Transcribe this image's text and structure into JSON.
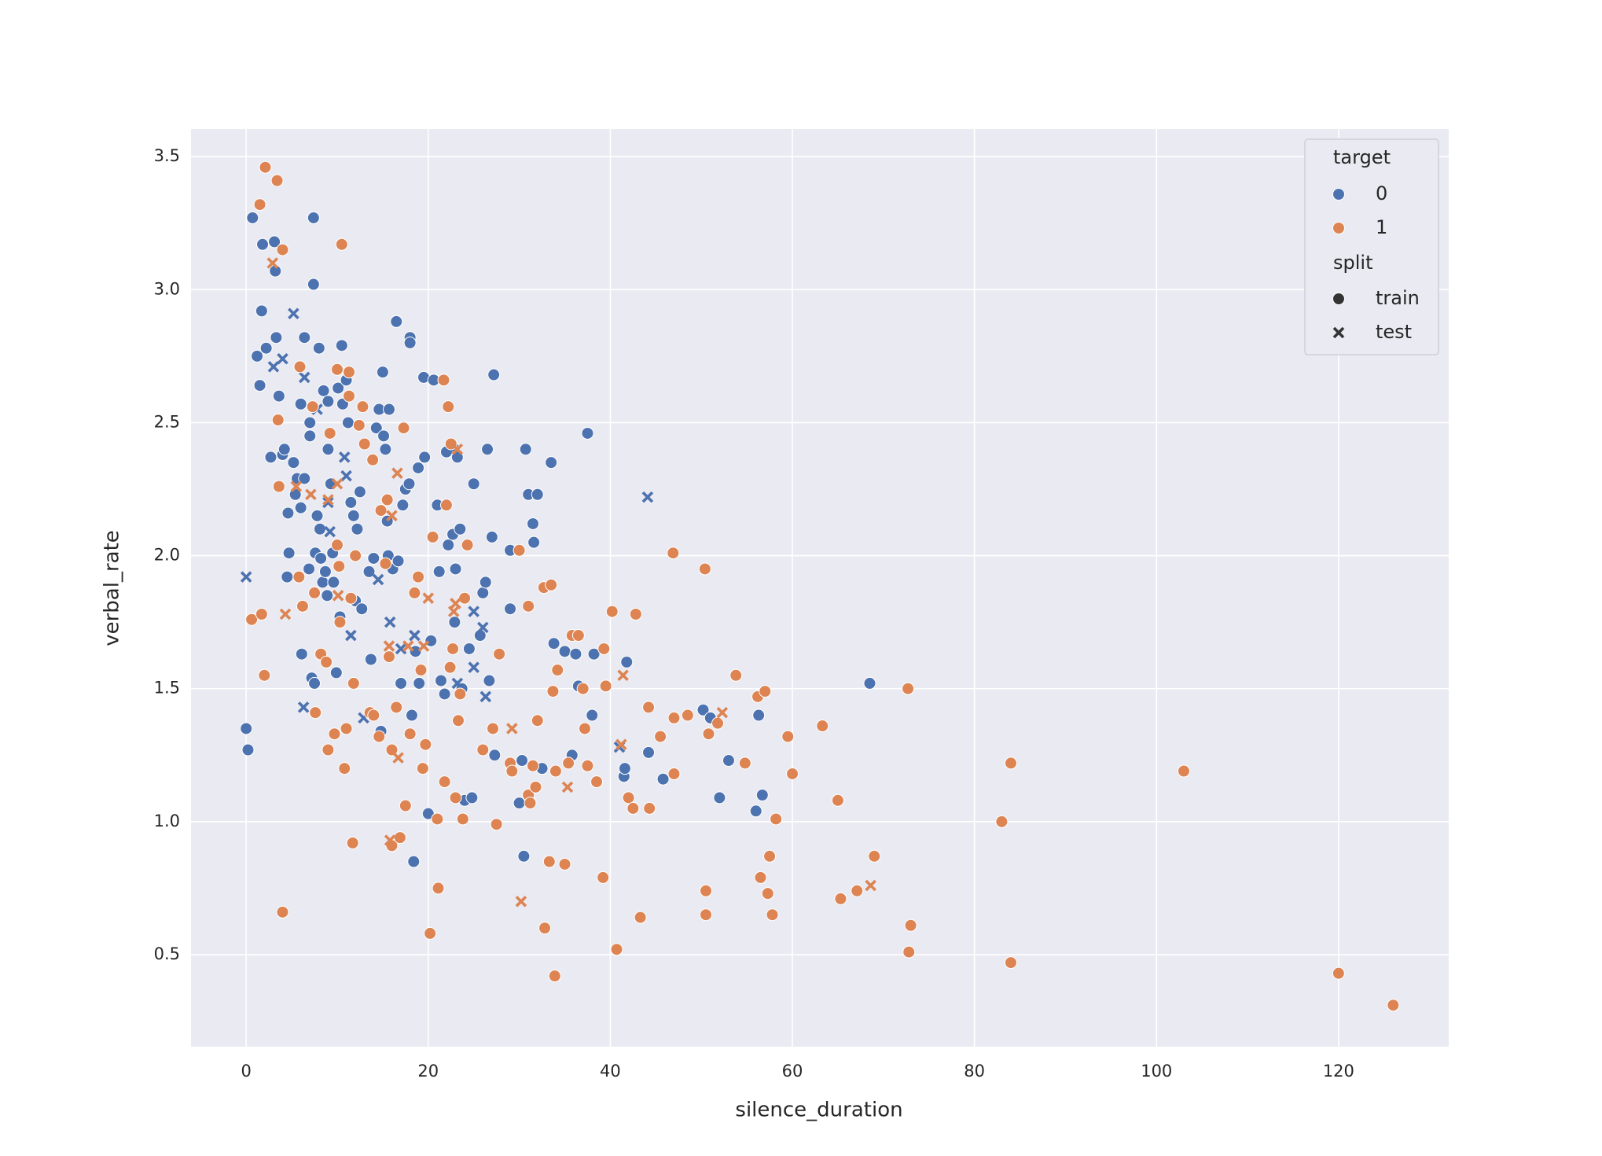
{
  "chart_data": {
    "type": "scatter",
    "x_label": "silence_duration",
    "y_label": "verbal_rate",
    "xlim": [
      -6.06,
      132.1
    ],
    "ylim": [
      0.154,
      3.604
    ],
    "xticks": [
      0,
      20,
      40,
      60,
      80,
      100,
      120
    ],
    "yticks": [
      {
        "value": 0.5,
        "label": "0.5"
      },
      {
        "value": 1,
        "label": "1.0"
      },
      {
        "value": 1.5,
        "label": "1.5"
      },
      {
        "value": 2,
        "label": "2.0"
      },
      {
        "value": 2.5,
        "label": "2.5"
      },
      {
        "value": 3,
        "label": "3.0"
      },
      {
        "value": 3.5,
        "label": "3.5"
      }
    ],
    "grid": true,
    "legend": {
      "loc": "upper right",
      "hue_title": "target",
      "hue_levels": [
        "0",
        "1"
      ],
      "style_title": "split",
      "style_levels": [
        "train",
        "test"
      ]
    },
    "palette": [
      "#4c72b0",
      "#dd8452"
    ],
    "markers": [
      "circle",
      "x"
    ],
    "series": [
      {
        "hue": 0,
        "style": 0,
        "x": [
          0,
          0.2,
          0.7,
          1.2,
          1.5,
          1.7,
          1.8,
          2.2,
          2.7,
          3.1,
          3.2,
          3.3,
          3.6,
          4,
          4.2,
          4.6,
          4.7,
          4.5,
          5.2,
          5.4,
          5.6,
          6,
          6.1,
          6,
          6.4,
          6.4,
          6.9,
          7,
          7,
          7.2,
          7.5,
          7.4,
          7.4,
          7.6,
          7.8,
          8,
          8.1,
          8.2,
          8.4,
          8.5,
          8.7,
          8.9,
          9,
          9,
          9.3,
          9.5,
          9.6,
          9.9,
          10.1,
          10.3,
          10.5,
          10.6,
          11,
          11.2,
          11.5,
          11.8,
          12,
          12.2,
          12.5,
          12.7,
          13.5,
          13.7,
          14,
          14.3,
          14.6,
          14.8,
          15,
          15.1,
          15.3,
          15.5,
          15.7,
          15.6,
          16.1,
          16.5,
          16.7,
          17,
          17.2,
          17.5,
          17.9,
          18,
          18,
          18.2,
          18.4,
          18.6,
          18.9,
          19,
          19.5,
          19.6,
          20,
          20.3,
          20.6,
          21,
          21.2,
          21.4,
          21.8,
          22,
          22.2,
          22.7,
          22.9,
          23,
          23.2,
          23.5,
          23.7,
          24,
          24.5,
          24.8,
          25,
          25.7,
          26,
          26.3,
          26.5,
          26.7,
          27,
          27.2,
          27.3,
          29,
          29,
          30,
          30.3,
          30.5,
          30.7,
          31,
          31.5,
          31.6,
          32,
          32.5,
          33.5,
          33.8,
          35,
          35.8,
          36.2,
          36.5,
          37.5,
          38,
          38.2,
          41.5,
          41.6,
          41.8,
          44.2,
          45.8,
          50.2,
          51,
          52,
          53,
          56,
          56.3,
          56.7,
          68.5
        ],
        "y": [
          1.35,
          1.27,
          3.27,
          2.75,
          2.64,
          2.92,
          3.17,
          2.78,
          2.37,
          3.18,
          3.07,
          2.82,
          2.6,
          2.38,
          2.4,
          2.16,
          2.01,
          1.92,
          2.35,
          2.23,
          2.29,
          2.18,
          1.63,
          2.57,
          2.29,
          2.82,
          1.95,
          2.45,
          2.5,
          1.54,
          1.52,
          3.02,
          3.27,
          2.01,
          2.15,
          2.78,
          2.1,
          1.99,
          1.9,
          2.62,
          1.94,
          1.85,
          2.4,
          2.58,
          2.27,
          2.01,
          1.9,
          1.56,
          2.63,
          1.77,
          2.79,
          2.57,
          2.66,
          2.5,
          2.2,
          2.15,
          1.83,
          2.1,
          2.24,
          1.8,
          1.94,
          1.61,
          1.99,
          2.48,
          2.55,
          1.34,
          2.69,
          2.45,
          2.4,
          2.13,
          2.55,
          2,
          1.95,
          2.88,
          1.98,
          1.52,
          2.19,
          2.25,
          2.27,
          2.82,
          2.8,
          1.4,
          0.85,
          1.64,
          2.33,
          1.52,
          2.67,
          2.37,
          1.03,
          1.68,
          2.66,
          2.19,
          1.94,
          1.53,
          1.48,
          2.39,
          2.04,
          2.08,
          1.75,
          1.95,
          2.37,
          2.1,
          1.5,
          1.08,
          1.65,
          1.09,
          2.27,
          1.7,
          1.86,
          1.9,
          2.4,
          1.53,
          2.07,
          2.68,
          1.25,
          2.02,
          1.8,
          1.07,
          1.23,
          0.87,
          2.4,
          2.23,
          2.12,
          2.05,
          2.23,
          1.2,
          2.35,
          1.67,
          1.64,
          1.25,
          1.63,
          1.51,
          2.46,
          1.4,
          1.63,
          1.17,
          1.2,
          1.6,
          1.26,
          1.16,
          1.42,
          1.39,
          1.09,
          1.23,
          1.04,
          1.4,
          1.1,
          1.52
        ]
      },
      {
        "hue": 0,
        "style": 1,
        "x": [
          0,
          3,
          4,
          5.2,
          6.4,
          6.3,
          7.8,
          9,
          9.2,
          10.8,
          11,
          11.5,
          12.9,
          14.5,
          15.8,
          17,
          18.5,
          22.7,
          25,
          25,
          26,
          26.3,
          44.1,
          41,
          23.2
        ],
        "y": [
          1.92,
          2.71,
          2.74,
          2.91,
          2.67,
          1.43,
          2.55,
          2.2,
          2.09,
          2.37,
          2.3,
          1.7,
          1.39,
          1.91,
          1.75,
          1.65,
          1.7,
          2.4,
          1.58,
          1.79,
          1.73,
          1.47,
          2.22,
          1.28,
          1.52
        ]
      },
      {
        "hue": 1,
        "style": 0,
        "x": [
          0.6,
          1.5,
          1.7,
          2,
          2.1,
          3.4,
          3.5,
          3.6,
          4,
          4,
          5.8,
          5.9,
          6.2,
          7.3,
          7.5,
          7.6,
          8.2,
          8.8,
          9,
          9.2,
          9.7,
          10,
          10,
          10.2,
          10.3,
          10.5,
          10.8,
          11,
          11.3,
          11.3,
          11.5,
          11.7,
          11.8,
          12,
          12.4,
          12.8,
          13,
          13.6,
          13.9,
          14,
          14.6,
          14.8,
          15.3,
          15.5,
          15.7,
          16,
          16,
          16.5,
          16.9,
          17.3,
          17.5,
          18,
          18.5,
          18.9,
          19.2,
          19.4,
          19.7,
          20.2,
          20.5,
          21,
          21.1,
          21.7,
          21.8,
          22,
          22.2,
          22.4,
          22.5,
          22.7,
          23,
          23.3,
          23.5,
          23.8,
          24,
          24.3,
          26,
          27.1,
          27.5,
          27.8,
          29,
          29.2,
          30,
          31,
          31,
          31.2,
          31.5,
          31.8,
          32,
          32.7,
          32.8,
          33.3,
          33.5,
          33.7,
          33.9,
          34.2,
          34,
          35,
          35.4,
          35.8,
          36.5,
          37,
          37.2,
          37.5,
          38.5,
          39.2,
          39.3,
          39.5,
          40.2,
          40.7,
          42,
          42.5,
          42.8,
          43.3,
          44.2,
          44.3,
          45.5,
          46.9,
          47,
          47,
          48.5,
          50.4,
          50.5,
          50.5,
          50.8,
          51.8,
          53.8,
          54.8,
          56.2,
          56.5,
          57,
          57.3,
          57.5,
          57.8,
          58.2,
          59.5,
          60,
          63.3,
          65,
          65.3,
          67.1,
          69,
          72.7,
          72.8,
          73,
          83,
          84,
          84,
          103,
          120,
          126
        ],
        "y": [
          1.76,
          3.32,
          1.78,
          1.55,
          3.46,
          3.41,
          2.51,
          2.26,
          3.15,
          0.66,
          1.92,
          2.71,
          1.81,
          2.56,
          1.86,
          1.41,
          1.63,
          1.6,
          1.27,
          2.46,
          1.33,
          2.7,
          2.04,
          1.96,
          1.75,
          3.17,
          1.2,
          1.35,
          2.69,
          2.6,
          1.84,
          0.92,
          1.52,
          2,
          2.49,
          2.56,
          2.42,
          1.41,
          2.36,
          1.4,
          1.32,
          2.17,
          1.97,
          2.21,
          1.62,
          1.27,
          0.91,
          1.43,
          0.94,
          2.48,
          1.06,
          1.33,
          1.86,
          1.92,
          1.57,
          1.2,
          1.29,
          0.58,
          2.07,
          1.01,
          0.75,
          2.66,
          1.15,
          2.19,
          2.56,
          1.58,
          2.42,
          1.65,
          1.09,
          1.38,
          1.48,
          1.01,
          1.84,
          2.04,
          1.27,
          1.35,
          0.99,
          1.63,
          1.22,
          1.19,
          2.02,
          1.1,
          1.81,
          1.07,
          1.21,
          1.13,
          1.38,
          1.88,
          0.6,
          0.85,
          1.89,
          1.49,
          0.42,
          1.57,
          1.19,
          0.84,
          1.22,
          1.7,
          1.7,
          1.5,
          1.35,
          1.21,
          1.15,
          0.79,
          1.65,
          1.51,
          1.79,
          0.52,
          1.09,
          1.05,
          1.78,
          0.64,
          1.43,
          1.05,
          1.32,
          2.01,
          1.39,
          1.18,
          1.4,
          1.95,
          0.74,
          0.65,
          1.33,
          1.37,
          1.55,
          1.22,
          1.47,
          0.79,
          1.49,
          0.73,
          0.87,
          0.65,
          1.01,
          1.32,
          1.18,
          1.36,
          1.08,
          0.71,
          0.74,
          0.87,
          1.5,
          0.51,
          0.61,
          1,
          1.22,
          0.47,
          1.19,
          0.43,
          0.31
        ]
      },
      {
        "hue": 1,
        "style": 1,
        "x": [
          2.9,
          4.3,
          5.5,
          7.1,
          9,
          10,
          10.1,
          15.7,
          15.8,
          16,
          16.6,
          16.7,
          17.8,
          19.5,
          20,
          22.8,
          23,
          23.2,
          29.2,
          30.2,
          35.3,
          41.2,
          41.4,
          52.3,
          68.6
        ],
        "y": [
          3.1,
          1.78,
          2.26,
          2.23,
          2.21,
          2.27,
          1.85,
          1.66,
          0.93,
          2.15,
          2.31,
          1.24,
          1.66,
          1.66,
          1.84,
          1.79,
          1.82,
          2.4,
          1.35,
          0.7,
          1.13,
          1.29,
          1.55,
          1.41,
          0.76
        ]
      }
    ]
  }
}
